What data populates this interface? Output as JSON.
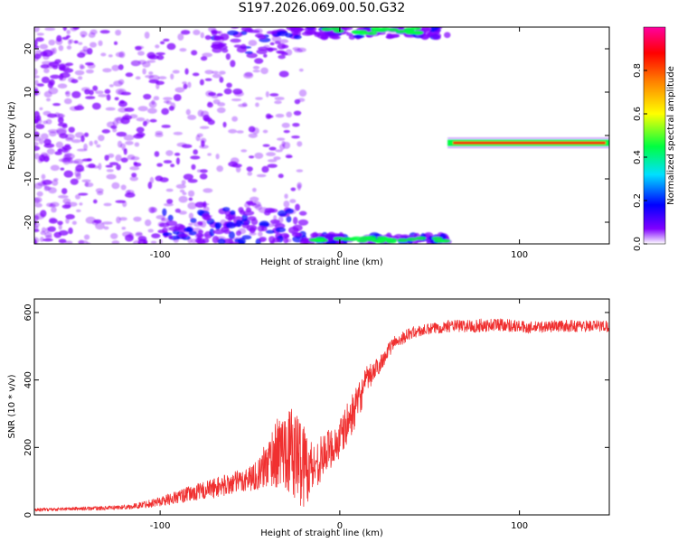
{
  "title": "S197.2026.069.00.50.G32",
  "chart_data": [
    {
      "type": "heatmap",
      "xlabel": "Height of straight line (km)",
      "ylabel": "Frequency (Hz)",
      "xlim": [
        -170,
        150
      ],
      "ylim": [
        -25,
        25
      ],
      "xticks": [
        -100,
        0,
        100
      ],
      "yticks": [
        -20,
        -10,
        0,
        10,
        20
      ],
      "xtick_labels": [
        "-100",
        "0",
        "100"
      ],
      "ytick_labels": [
        "-20",
        "-10",
        "0",
        "10",
        "20"
      ],
      "colorbar": {
        "label": "Normalized spectral amplitude",
        "range": [
          0,
          1
        ],
        "ticks": [
          0.0,
          0.2,
          0.4,
          0.6,
          0.8
        ],
        "tick_labels": [
          "0.0",
          "0.2",
          "0.4",
          "0.6",
          "0.8"
        ],
        "colormap": [
          "#ffffff",
          "#8000ff",
          "#0000ff",
          "#00e0ff",
          "#00ff40",
          "#ffff00",
          "#ff8000",
          "#ff0000",
          "#ff00a0"
        ]
      },
      "features": [
        {
          "name": "diffuse-noise",
          "x_range": [
            -170,
            -20
          ],
          "y_range": [
            -25,
            25
          ],
          "amplitude": 0.2
        },
        {
          "name": "upper-aliased-trace",
          "x_range": [
            -70,
            60
          ],
          "y_range": [
            18,
            25
          ],
          "amplitude": 0.5
        },
        {
          "name": "lower-aliased-trace",
          "x_range": [
            -100,
            60
          ],
          "y_range": [
            -25,
            -17
          ],
          "amplitude": 0.45
        },
        {
          "name": "carrier-line",
          "x_range": [
            60,
            150
          ],
          "y_range": [
            -2.2,
            -1.2
          ],
          "amplitude": 0.95
        }
      ],
      "grid": false
    },
    {
      "type": "line",
      "xlabel": "Height of straight line (km)",
      "ylabel": "SNR (10 * v/v)",
      "xlim": [
        -170,
        150
      ],
      "ylim": [
        0,
        640
      ],
      "xticks": [
        -100,
        0,
        100
      ],
      "yticks": [
        0,
        200,
        400,
        600
      ],
      "xtick_labels": [
        "-100",
        "0",
        "100"
      ],
      "ytick_labels": [
        "0",
        "200",
        "400",
        "600"
      ],
      "series_color": "#f03030",
      "envelope": {
        "x": [
          -170,
          -150,
          -130,
          -115,
          -100,
          -85,
          -70,
          -55,
          -45,
          -38,
          -30,
          -25,
          -20,
          -15,
          -10,
          -5,
          0,
          5,
          10,
          15,
          20,
          25,
          30,
          40,
          50,
          60,
          75,
          90,
          105,
          120,
          135,
          150
        ],
        "mean": [
          15,
          18,
          20,
          25,
          40,
          60,
          80,
          100,
          120,
          170,
          200,
          180,
          150,
          140,
          170,
          200,
          220,
          280,
          330,
          400,
          430,
          470,
          510,
          540,
          550,
          560,
          560,
          565,
          555,
          560,
          560,
          560
        ],
        "amplitude": [
          10,
          10,
          12,
          15,
          30,
          45,
          60,
          70,
          90,
          180,
          250,
          270,
          270,
          150,
          130,
          120,
          130,
          120,
          110,
          80,
          60,
          45,
          40,
          35,
          35,
          35,
          40,
          40,
          35,
          35,
          35,
          35
        ]
      },
      "grid": false
    }
  ]
}
